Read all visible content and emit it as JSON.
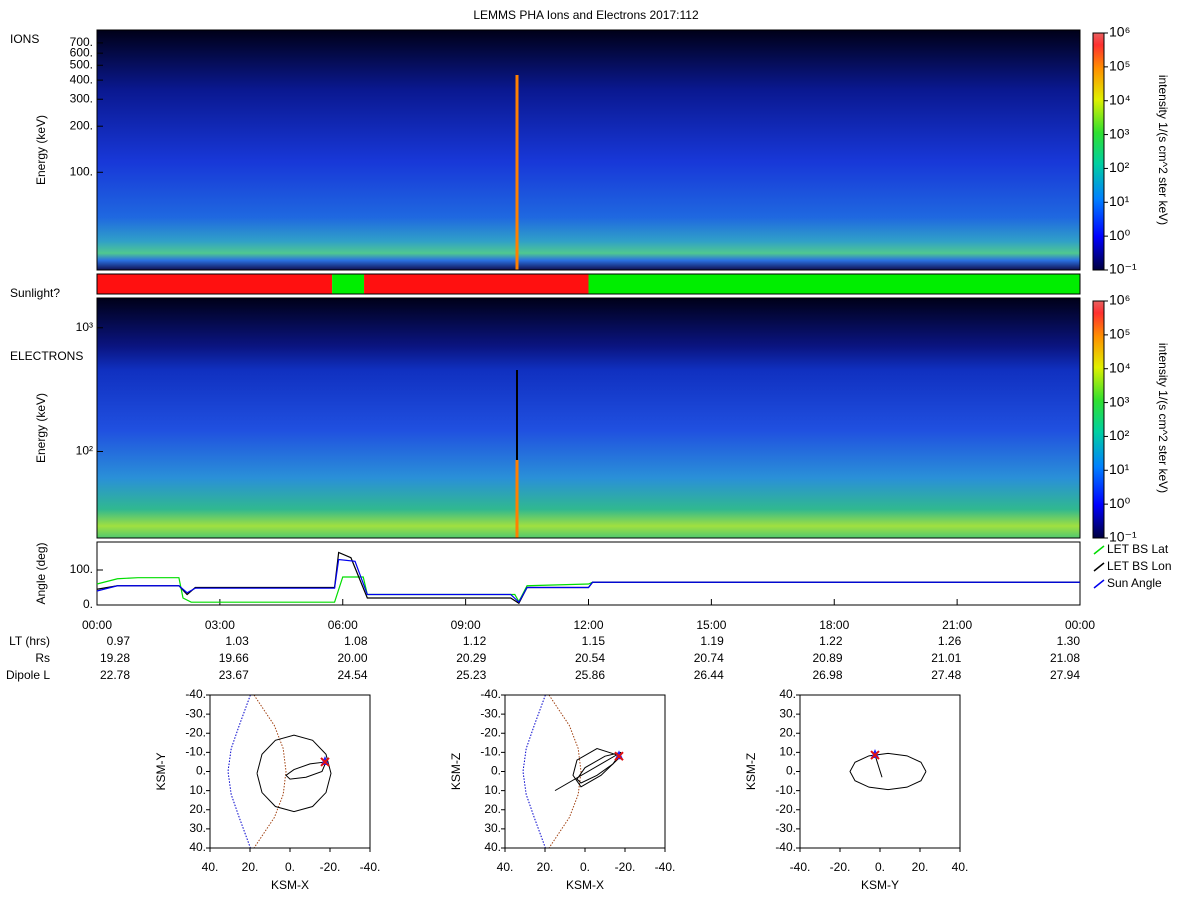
{
  "title": "LEMMS PHA Ions and Electrons  2017:112",
  "chart_data": [
    {
      "type": "heatmap",
      "label": "IONS",
      "ylabel": "Energy (keV)",
      "log_y": true,
      "ylim": [
        23,
        850
      ],
      "yticks": [
        {
          "value": 100,
          "label": "100."
        },
        {
          "value": 200,
          "label": "200."
        },
        {
          "value": 300,
          "label": "300."
        },
        {
          "value": 400,
          "label": "400."
        },
        {
          "value": 500,
          "label": "500."
        },
        {
          "value": 600,
          "label": "600."
        },
        {
          "value": 700,
          "label": "700."
        }
      ],
      "colorbar": {
        "label": "intensity 1/(s cm^2 ster keV)",
        "log": true,
        "lim": [
          0.1,
          1000000
        ],
        "ticks": [
          {
            "value": 0.1,
            "label": "10⁻¹"
          },
          {
            "value": 1,
            "label": "10⁰"
          },
          {
            "value": 10,
            "label": "10¹"
          },
          {
            "value": 100,
            "label": "10²"
          },
          {
            "value": 1000,
            "label": "10³"
          },
          {
            "value": 10000,
            "label": "10⁴"
          },
          {
            "value": 100000,
            "label": "10⁵"
          },
          {
            "value": 1000000,
            "label": "10⁶"
          }
        ]
      }
    },
    {
      "type": "timeline",
      "label": "Sunlight?",
      "xlim": [
        0,
        24
      ],
      "segments": [
        {
          "start": 0,
          "end": 5.74,
          "color": "#ff1010"
        },
        {
          "start": 5.74,
          "end": 6.52,
          "color": "#00ee00"
        },
        {
          "start": 6.52,
          "end": 12,
          "color": "#ff1010"
        },
        {
          "start": 12,
          "end": 24,
          "color": "#00ee00"
        }
      ]
    },
    {
      "type": "heatmap",
      "label": "ELECTRONS",
      "ylabel": "Energy (keV)",
      "log_y": true,
      "ylim": [
        20,
        1740
      ],
      "yticks": [
        {
          "value": 100,
          "label": "10²"
        },
        {
          "value": 1000,
          "label": "10³"
        }
      ],
      "colorbar": {
        "label": "intensity 1/(s cm^2 ster keV)",
        "log": true,
        "lim": [
          0.1,
          1000000
        ],
        "ticks": [
          {
            "value": 0.1,
            "label": "10⁻¹"
          },
          {
            "value": 1,
            "label": "10⁰"
          },
          {
            "value": 10,
            "label": "10¹"
          },
          {
            "value": 100,
            "label": "10²"
          },
          {
            "value": 1000,
            "label": "10³"
          },
          {
            "value": 10000,
            "label": "10⁴"
          },
          {
            "value": 100000,
            "label": "10⁵"
          },
          {
            "value": 1000000,
            "label": "10⁶"
          }
        ]
      }
    },
    {
      "type": "line",
      "ylabel": "Angle (deg)",
      "xlim": [
        0,
        24
      ],
      "ylim": [
        0,
        180
      ],
      "yticks": [
        {
          "value": 0,
          "label": "0."
        },
        {
          "value": 100,
          "label": "100."
        }
      ],
      "xticks": [
        {
          "value": 0,
          "label": "00:00"
        },
        {
          "value": 3,
          "label": "03:00"
        },
        {
          "value": 6,
          "label": "06:00"
        },
        {
          "value": 9,
          "label": "09:00"
        },
        {
          "value": 12,
          "label": "12:00"
        },
        {
          "value": 15,
          "label": "15:00"
        },
        {
          "value": 18,
          "label": "18:00"
        },
        {
          "value": 21,
          "label": "21:00"
        },
        {
          "value": 24,
          "label": "00:00"
        }
      ],
      "series": [
        {
          "name": "LET BS Lat",
          "color": "#00dd00",
          "x": [
            0,
            0.5,
            1,
            2,
            2.1,
            2.3,
            5.8,
            6.0,
            6.5,
            6.6,
            10.2,
            10.3,
            10.5,
            12,
            12.1,
            24
          ],
          "values": [
            60,
            75,
            78,
            78,
            20,
            8,
            8,
            80,
            80,
            30,
            30,
            10,
            55,
            60,
            65,
            65
          ]
        },
        {
          "name": "LET BS Lon",
          "color": "#000000",
          "x": [
            0,
            0.5,
            2,
            2.2,
            2.4,
            5.8,
            5.9,
            6.2,
            6.6,
            10.1,
            10.3,
            10.5,
            12,
            12.1,
            24
          ],
          "values": [
            45,
            55,
            55,
            30,
            50,
            50,
            150,
            135,
            20,
            20,
            5,
            50,
            50,
            65,
            65
          ]
        },
        {
          "name": "Sun Angle",
          "color": "#0000ee",
          "x": [
            0,
            0.5,
            2,
            2.2,
            2.4,
            5.8,
            5.9,
            6.3,
            6.6,
            10.1,
            10.3,
            10.5,
            12,
            12.1,
            24
          ],
          "values": [
            40,
            55,
            55,
            35,
            48,
            48,
            130,
            125,
            30,
            30,
            8,
            50,
            50,
            65,
            65
          ]
        }
      ],
      "table": {
        "rows": [
          {
            "label": "LT (hrs)",
            "values": [
              "0.97",
              "1.03",
              "1.08",
              "1.12",
              "1.15",
              "1.19",
              "1.22",
              "1.26",
              "1.30"
            ]
          },
          {
            "label": "Rs",
            "values": [
              "19.28",
              "19.66",
              "20.00",
              "20.29",
              "20.54",
              "20.74",
              "20.89",
              "21.01",
              "21.08"
            ]
          },
          {
            "label": "Dipole L",
            "values": [
              "22.78",
              "23.67",
              "24.54",
              "25.23",
              "25.86",
              "26.44",
              "26.98",
              "27.48",
              "27.94"
            ]
          }
        ]
      }
    },
    {
      "type": "orbit",
      "xlabel": "KSM-X",
      "ylabel": "KSM-Y",
      "xlim": [
        40,
        -40
      ],
      "ylim": [
        40,
        -40
      ],
      "xticks": [
        {
          "value": 40,
          "label": "40."
        },
        {
          "value": 20,
          "label": "20."
        },
        {
          "value": 0,
          "label": "0."
        },
        {
          "value": -20,
          "label": "-20."
        },
        {
          "value": -40,
          "label": "-40."
        }
      ],
      "yticks": [
        {
          "value": -40,
          "label": "-40."
        },
        {
          "value": -30,
          "label": "-30."
        },
        {
          "value": -20,
          "label": "-20."
        },
        {
          "value": -10,
          "label": "-10."
        },
        {
          "value": 0,
          "label": "0."
        },
        {
          "value": 10,
          "label": "10."
        },
        {
          "value": 20,
          "label": "20."
        },
        {
          "value": 30,
          "label": "30."
        },
        {
          "value": 40,
          "label": "40."
        }
      ],
      "series": [
        {
          "color": "#0000cc",
          "dotted": true,
          "x": [
            19.8,
            25.4,
            29.4,
            31,
            29.4,
            25.4,
            19.8
          ],
          "y": [
            -40,
            -24,
            -12,
            0,
            12,
            24,
            40
          ]
        },
        {
          "color": "#a04010",
          "dotted": true,
          "x": [
            18,
            7.8,
            3.4,
            2,
            3.4,
            7.8,
            18
          ],
          "y": [
            -40,
            -24,
            -12,
            0,
            12,
            24,
            40
          ]
        },
        {
          "color": "#000000",
          "dotted": false,
          "x": [
            16.5,
            14,
            7.3,
            -2,
            -11.3,
            -18,
            -20.5,
            -18,
            -11.3,
            -2,
            7.3,
            14,
            16.5
          ],
          "y": [
            1,
            11,
            18.3,
            21,
            18.3,
            11,
            1,
            -9,
            -16.3,
            -19,
            -16.3,
            -9,
            1
          ]
        },
        {
          "color": "#000000",
          "dotted": false,
          "x": [
            -18,
            -10,
            -2,
            2,
            0,
            -8,
            -16,
            -18
          ],
          "y": [
            -5,
            -4,
            -1,
            2,
            4,
            3,
            0,
            -5
          ]
        }
      ],
      "position": {
        "x": -17.5,
        "y": -5
      }
    },
    {
      "type": "orbit",
      "xlabel": "KSM-X",
      "ylabel": "KSM-Z",
      "xlim": [
        40,
        -40
      ],
      "ylim": [
        40,
        -40
      ],
      "xticks": [
        {
          "value": 40,
          "label": "40."
        },
        {
          "value": 20,
          "label": "20."
        },
        {
          "value": 0,
          "label": "0."
        },
        {
          "value": -20,
          "label": "-20."
        },
        {
          "value": -40,
          "label": "-40."
        }
      ],
      "yticks": [
        {
          "value": -40,
          "label": "-40."
        },
        {
          "value": -30,
          "label": "-30."
        },
        {
          "value": -20,
          "label": "-20."
        },
        {
          "value": -10,
          "label": "-10."
        },
        {
          "value": 0,
          "label": "0."
        },
        {
          "value": 10,
          "label": "10."
        },
        {
          "value": 20,
          "label": "20."
        },
        {
          "value": 30,
          "label": "30."
        },
        {
          "value": 40,
          "label": "40."
        }
      ],
      "series": [
        {
          "color": "#0000cc",
          "dotted": true,
          "x": [
            19.8,
            25.4,
            29.4,
            31,
            29.4,
            25.4,
            19.8
          ],
          "y": [
            -40,
            -24,
            -12,
            0,
            12,
            24,
            40
          ]
        },
        {
          "color": "#a04010",
          "dotted": true,
          "x": [
            18,
            7.8,
            3.4,
            2,
            3.4,
            7.8,
            18
          ],
          "y": [
            -40,
            -24,
            -12,
            0,
            12,
            24,
            40
          ]
        },
        {
          "color": "#000000",
          "dotted": false,
          "x": [
            -18,
            -10,
            0,
            4,
            2,
            -6,
            -14,
            -18
          ],
          "y": [
            -10,
            -8,
            -2,
            4,
            6,
            2,
            -4,
            -10
          ]
        },
        {
          "color": "#000000",
          "dotted": false,
          "x": [
            -18,
            -6,
            4,
            6,
            2,
            -8,
            -18
          ],
          "y": [
            -8,
            -12,
            -6,
            2,
            8,
            2,
            -8
          ]
        },
        {
          "color": "#000000",
          "dotted": false,
          "x": [
            15,
            -18
          ],
          "y": [
            10,
            -10
          ]
        }
      ],
      "position": {
        "x": -17,
        "y": -8
      }
    },
    {
      "type": "orbit",
      "xlabel": "KSM-Y",
      "ylabel": "KSM-Z",
      "xlim": [
        -40,
        40
      ],
      "ylim": [
        -40,
        40
      ],
      "xticks": [
        {
          "value": -40,
          "label": "-40."
        },
        {
          "value": -20,
          "label": "-20."
        },
        {
          "value": 0,
          "label": "0."
        },
        {
          "value": 20,
          "label": "20."
        },
        {
          "value": 40,
          "label": "40."
        }
      ],
      "yticks": [
        {
          "value": -40,
          "label": "-40."
        },
        {
          "value": -30,
          "label": "-30."
        },
        {
          "value": -20,
          "label": "-20."
        },
        {
          "value": -10,
          "label": "-10."
        },
        {
          "value": 0,
          "label": "0."
        },
        {
          "value": 10,
          "label": "10."
        },
        {
          "value": 20,
          "label": "20."
        },
        {
          "value": 30,
          "label": "30."
        },
        {
          "value": 40,
          "label": "40."
        }
      ],
      "series": [
        {
          "color": "#000000",
          "dotted": false,
          "x": [
            23,
            20.5,
            13.5,
            4,
            -5.5,
            -12.5,
            -15,
            -12.5,
            -5.5,
            4,
            13.5,
            20.5,
            23
          ],
          "y": [
            0,
            4.8,
            8.2,
            9.5,
            8.2,
            4.8,
            0,
            -4.8,
            -8.2,
            -9.5,
            -8.2,
            -4.8,
            0
          ]
        },
        {
          "color": "#000000",
          "dotted": false,
          "x": [
            -2.5,
            1
          ],
          "y": [
            8.6,
            -3
          ]
        }
      ],
      "position": {
        "x": -2.5,
        "y": 8.6
      }
    }
  ]
}
